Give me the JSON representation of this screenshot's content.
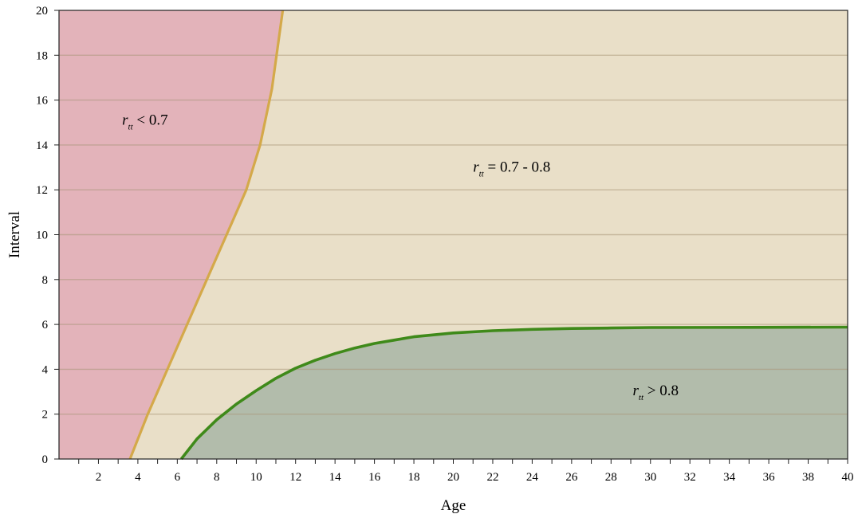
{
  "chart_data": {
    "type": "area",
    "xlabel": "Age",
    "ylabel": "Interval",
    "xlim": [
      0,
      40
    ],
    "ylim": [
      0,
      20
    ],
    "x_ticks": [
      2,
      4,
      6,
      8,
      10,
      12,
      14,
      16,
      18,
      20,
      22,
      24,
      26,
      28,
      30,
      32,
      34,
      36,
      38,
      40
    ],
    "y_ticks": [
      0,
      2,
      4,
      6,
      8,
      10,
      12,
      14,
      16,
      18,
      20
    ],
    "grid": "horizontal",
    "series": [
      {
        "color": "#d4a94a",
        "x": [
          3.6,
          4.5,
          5.5,
          6.5,
          7.5,
          8.5,
          9.5,
          10.2,
          10.8,
          11.35
        ],
        "y": [
          0,
          2,
          4,
          6,
          8,
          10,
          12,
          14,
          16.5,
          20
        ]
      },
      {
        "color": "#3f8a1a",
        "x": [
          6.2,
          7,
          8,
          9,
          10,
          11,
          12,
          13,
          14,
          15,
          16,
          17,
          18,
          20,
          22,
          24,
          26,
          28,
          30,
          35,
          40
        ],
        "y": [
          0,
          0.9,
          1.75,
          2.45,
          3.05,
          3.6,
          4.05,
          4.4,
          4.7,
          4.95,
          5.15,
          5.3,
          5.45,
          5.62,
          5.72,
          5.78,
          5.82,
          5.84,
          5.86,
          5.87,
          5.88
        ]
      }
    ],
    "regions": [
      {
        "symbol": "r",
        "subscript": "tt",
        "relation": " < 0.7",
        "color": "#e3b3ba",
        "anchor_x": 3.2,
        "anchor_y": 14.9
      },
      {
        "symbol": "r",
        "subscript": "tt",
        "relation": " = 0.7 - 0.8",
        "color": "#e9dfc8",
        "anchor_x": 21,
        "anchor_y": 12.8
      },
      {
        "symbol": "r",
        "subscript": "tt",
        "relation": " > 0.8",
        "color": "#b2bcab",
        "anchor_x": 29.1,
        "anchor_y": 2.85
      }
    ]
  }
}
